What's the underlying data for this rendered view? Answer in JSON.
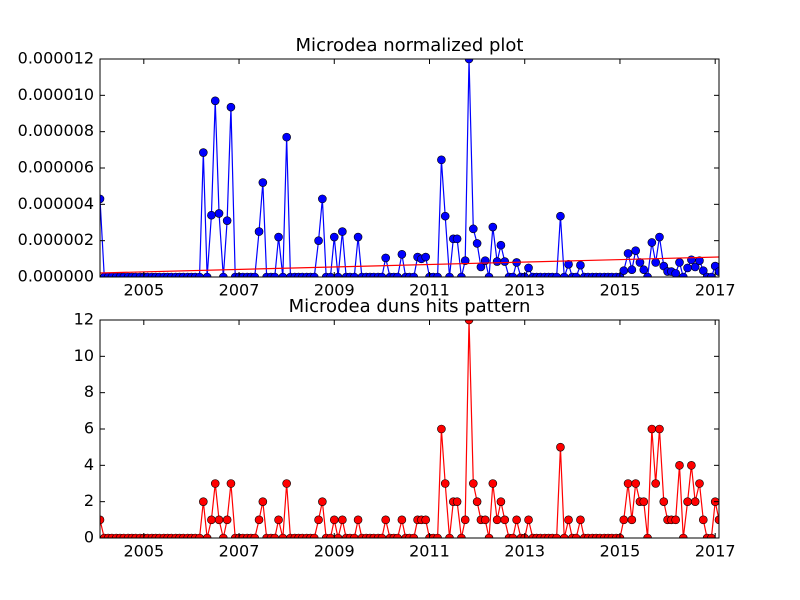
{
  "chart_data": [
    {
      "type": "line",
      "title": "Microdea normalized plot",
      "x": [
        2004.08,
        2004.17,
        2004.25,
        2004.33,
        2004.42,
        2004.5,
        2004.58,
        2004.67,
        2004.75,
        2004.83,
        2004.92,
        2005.0,
        2005.08,
        2005.17,
        2005.25,
        2005.33,
        2005.42,
        2005.5,
        2005.58,
        2005.67,
        2005.75,
        2005.83,
        2005.92,
        2006.0,
        2006.08,
        2006.17,
        2006.25,
        2006.33,
        2006.42,
        2006.5,
        2006.58,
        2006.67,
        2006.75,
        2006.83,
        2006.92,
        2007.0,
        2007.08,
        2007.17,
        2007.25,
        2007.33,
        2007.42,
        2007.5,
        2007.58,
        2007.67,
        2007.75,
        2007.83,
        2007.92,
        2008.0,
        2008.08,
        2008.17,
        2008.25,
        2008.33,
        2008.42,
        2008.5,
        2008.58,
        2008.67,
        2008.75,
        2008.83,
        2008.92,
        2009.0,
        2009.08,
        2009.17,
        2009.25,
        2009.33,
        2009.42,
        2009.5,
        2009.58,
        2009.67,
        2009.75,
        2009.83,
        2009.92,
        2010.0,
        2010.08,
        2010.17,
        2010.25,
        2010.33,
        2010.42,
        2010.5,
        2010.58,
        2010.67,
        2010.75,
        2010.83,
        2010.92,
        2011.0,
        2011.08,
        2011.17,
        2011.25,
        2011.33,
        2011.42,
        2011.5,
        2011.58,
        2011.67,
        2011.75,
        2011.83,
        2011.92,
        2012.0,
        2012.08,
        2012.17,
        2012.25,
        2012.33,
        2012.42,
        2012.5,
        2012.58,
        2012.67,
        2012.75,
        2012.83,
        2012.92,
        2013.0,
        2013.08,
        2013.17,
        2013.25,
        2013.33,
        2013.42,
        2013.5,
        2013.58,
        2013.67,
        2013.75,
        2013.83,
        2013.92,
        2014.0,
        2014.08,
        2014.17,
        2014.25,
        2014.33,
        2014.42,
        2014.5,
        2014.58,
        2014.67,
        2014.75,
        2014.83,
        2014.92,
        2015.0,
        2015.08,
        2015.17,
        2015.25,
        2015.33,
        2015.42,
        2015.5,
        2015.58,
        2015.67,
        2015.75,
        2015.83,
        2015.92,
        2016.0,
        2016.08,
        2016.17,
        2016.25,
        2016.33,
        2016.42,
        2016.5,
        2016.58,
        2016.67,
        2016.75,
        2016.83,
        2016.92,
        2017.0,
        2017.08
      ],
      "series": [
        {
          "color": "#0000ff",
          "marker": true,
          "values": [
            4.3e-06,
            0,
            0,
            0,
            0,
            0,
            0,
            0,
            0,
            0,
            0,
            0,
            0,
            0,
            0,
            0,
            0,
            0,
            0,
            0,
            0,
            0,
            0,
            0,
            0,
            0,
            6.85e-06,
            0,
            3.4e-06,
            9.7e-06,
            3.5e-06,
            0,
            3.1e-06,
            9.35e-06,
            0,
            0,
            0,
            0,
            0,
            0,
            2.5e-06,
            5.2e-06,
            0,
            0,
            0,
            2.2e-06,
            0,
            7.7e-06,
            0,
            0,
            0,
            0,
            0,
            0,
            0,
            2e-06,
            4.3e-06,
            0,
            0,
            2.2e-06,
            0,
            2.5e-06,
            0,
            0,
            0,
            2.2e-06,
            0,
            0,
            0,
            0,
            0,
            0,
            1.05e-06,
            0,
            0,
            0,
            1.25e-06,
            0,
            0,
            0,
            1.1e-06,
            1e-06,
            1.1e-06,
            0,
            0,
            0,
            6.45e-06,
            3.35e-06,
            0,
            2.1e-06,
            2.1e-06,
            0,
            9e-07,
            1.2e-05,
            2.65e-06,
            1.85e-06,
            5.5e-07,
            9e-07,
            0,
            2.75e-06,
            8.5e-07,
            1.75e-06,
            8.5e-07,
            0,
            0,
            8e-07,
            0,
            0,
            5e-07,
            0,
            0,
            0,
            0,
            0,
            0,
            0,
            3.35e-06,
            0,
            7e-07,
            0,
            0,
            6.5e-07,
            0,
            0,
            0,
            0,
            0,
            0,
            0,
            0,
            0,
            0,
            3.5e-07,
            1.3e-06,
            4e-07,
            1.45e-06,
            8e-07,
            4e-07,
            0,
            1.9e-06,
            8e-07,
            2.2e-06,
            6e-07,
            3e-07,
            3e-07,
            2e-07,
            8e-07,
            0,
            5e-07,
            9.5e-07,
            5.5e-07,
            9e-07,
            3.5e-07,
            0,
            0,
            6e-07,
            3e-07
          ]
        },
        {
          "color": "#ff0000",
          "marker": false,
          "x": [
            2004.08,
            2017.08
          ],
          "values": [
            2.2e-07,
            1.1e-06
          ]
        }
      ],
      "xlim": [
        2004.08,
        2017.08
      ],
      "xticks": [
        2005,
        2007,
        2009,
        2011,
        2013,
        2015,
        2017
      ],
      "ylim": [
        0,
        1.2e-05
      ],
      "yticks": [
        {
          "value": 0,
          "label": "0.000000"
        },
        {
          "value": 2e-06,
          "label": "0.000002"
        },
        {
          "value": 4e-06,
          "label": "0.000004"
        },
        {
          "value": 6e-06,
          "label": "0.000006"
        },
        {
          "value": 8e-06,
          "label": "0.000008"
        },
        {
          "value": 1e-05,
          "label": "0.000010"
        },
        {
          "value": 1.2e-05,
          "label": "0.000012"
        }
      ]
    },
    {
      "type": "line",
      "title": "Microdea duns hits pattern",
      "x": [
        2004.08,
        2004.17,
        2004.25,
        2004.33,
        2004.42,
        2004.5,
        2004.58,
        2004.67,
        2004.75,
        2004.83,
        2004.92,
        2005.0,
        2005.08,
        2005.17,
        2005.25,
        2005.33,
        2005.42,
        2005.5,
        2005.58,
        2005.67,
        2005.75,
        2005.83,
        2005.92,
        2006.0,
        2006.08,
        2006.17,
        2006.25,
        2006.33,
        2006.42,
        2006.5,
        2006.58,
        2006.67,
        2006.75,
        2006.83,
        2006.92,
        2007.0,
        2007.08,
        2007.17,
        2007.25,
        2007.33,
        2007.42,
        2007.5,
        2007.58,
        2007.67,
        2007.75,
        2007.83,
        2007.92,
        2008.0,
        2008.08,
        2008.17,
        2008.25,
        2008.33,
        2008.42,
        2008.5,
        2008.58,
        2008.67,
        2008.75,
        2008.83,
        2008.92,
        2009.0,
        2009.08,
        2009.17,
        2009.25,
        2009.33,
        2009.42,
        2009.5,
        2009.58,
        2009.67,
        2009.75,
        2009.83,
        2009.92,
        2010.0,
        2010.08,
        2010.17,
        2010.25,
        2010.33,
        2010.42,
        2010.5,
        2010.58,
        2010.67,
        2010.75,
        2010.83,
        2010.92,
        2011.0,
        2011.08,
        2011.17,
        2011.25,
        2011.33,
        2011.42,
        2011.5,
        2011.58,
        2011.67,
        2011.75,
        2011.83,
        2011.92,
        2012.0,
        2012.08,
        2012.17,
        2012.25,
        2012.33,
        2012.42,
        2012.5,
        2012.58,
        2012.67,
        2012.75,
        2012.83,
        2012.92,
        2013.0,
        2013.08,
        2013.17,
        2013.25,
        2013.33,
        2013.42,
        2013.5,
        2013.58,
        2013.67,
        2013.75,
        2013.83,
        2013.92,
        2014.0,
        2014.08,
        2014.17,
        2014.25,
        2014.33,
        2014.42,
        2014.5,
        2014.58,
        2014.67,
        2014.75,
        2014.83,
        2014.92,
        2015.0,
        2015.08,
        2015.17,
        2015.25,
        2015.33,
        2015.42,
        2015.5,
        2015.58,
        2015.67,
        2015.75,
        2015.83,
        2015.92,
        2016.0,
        2016.08,
        2016.17,
        2016.25,
        2016.33,
        2016.42,
        2016.5,
        2016.58,
        2016.67,
        2016.75,
        2016.83,
        2016.92,
        2017.0,
        2017.08
      ],
      "series": [
        {
          "color": "#ff0000",
          "marker": true,
          "values": [
            1,
            0,
            0,
            0,
            0,
            0,
            0,
            0,
            0,
            0,
            0,
            0,
            0,
            0,
            0,
            0,
            0,
            0,
            0,
            0,
            0,
            0,
            0,
            0,
            0,
            0,
            2,
            0,
            1,
            3,
            1,
            0,
            1,
            3,
            0,
            0,
            0,
            0,
            0,
            0,
            1,
            2,
            0,
            0,
            0,
            1,
            0,
            3,
            0,
            0,
            0,
            0,
            0,
            0,
            0,
            1,
            2,
            0,
            0,
            1,
            0,
            1,
            0,
            0,
            0,
            1,
            0,
            0,
            0,
            0,
            0,
            0,
            1,
            0,
            0,
            0,
            1,
            0,
            0,
            0,
            1,
            1,
            1,
            0,
            0,
            0,
            6,
            3,
            0,
            2,
            2,
            0,
            1,
            12,
            3,
            2,
            1,
            1,
            0,
            3,
            1,
            2,
            1,
            0,
            0,
            1,
            0,
            0,
            1,
            0,
            0,
            0,
            0,
            0,
            0,
            0,
            5,
            0,
            1,
            0,
            0,
            1,
            0,
            0,
            0,
            0,
            0,
            0,
            0,
            0,
            0,
            0,
            1,
            3,
            1,
            3,
            2,
            2,
            0,
            6,
            3,
            6,
            2,
            1,
            1,
            1,
            4,
            0,
            2,
            4,
            2,
            3,
            1,
            0,
            0,
            2,
            1
          ]
        }
      ],
      "xlim": [
        2004.08,
        2017.08
      ],
      "xticks": [
        2005,
        2007,
        2009,
        2011,
        2013,
        2015,
        2017
      ],
      "ylim": [
        0,
        12
      ],
      "yticks": [
        0,
        2,
        4,
        6,
        8,
        10,
        12
      ]
    }
  ]
}
